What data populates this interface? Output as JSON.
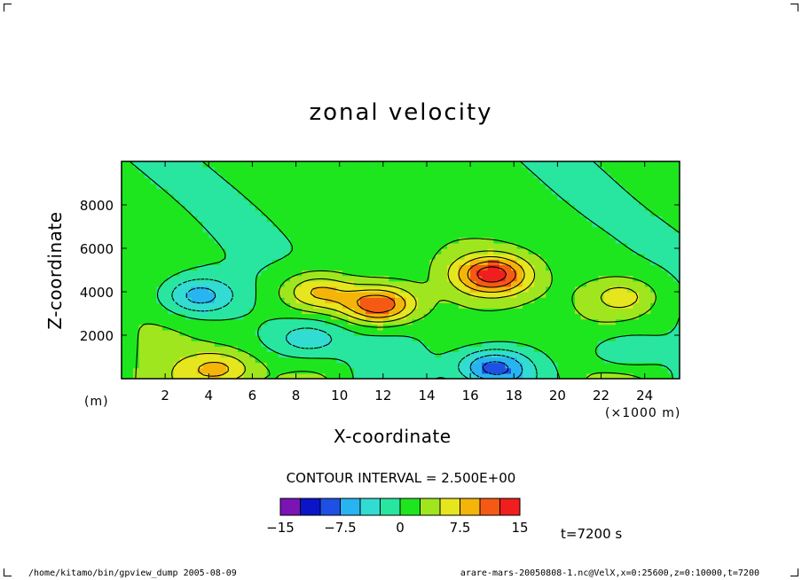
{
  "chart_data": {
    "type": "contour",
    "title": "zonal velocity",
    "xlabel": "X-coordinate",
    "ylabel": "Z-coordinate",
    "x_unit_left": "(m)",
    "x_unit_right": "(×1000 m)",
    "xlim": [
      0,
      25.6
    ],
    "ylim": [
      0,
      10000
    ],
    "x_ticks": [
      2,
      4,
      6,
      8,
      10,
      12,
      14,
      16,
      18,
      20,
      22,
      24
    ],
    "x_tick_labels": [
      "2",
      "4",
      "6",
      "8",
      "10",
      "12",
      "14",
      "16",
      "18",
      "20",
      "22",
      "24"
    ],
    "y_ticks": [
      2000,
      4000,
      6000,
      8000
    ],
    "y_tick_labels": [
      "2000",
      "4000",
      "6000",
      "8000"
    ],
    "contour_interval_text": "CONTOUR INTERVAL = 2.500E+00",
    "colorbar": {
      "levels": [
        -15,
        -12.5,
        -10,
        -7.5,
        -5,
        -2.5,
        0,
        2.5,
        5,
        7.5,
        10,
        12.5,
        15
      ],
      "colors": [
        "#7a14b4",
        "#0a14c8",
        "#1e50e6",
        "#28b4f0",
        "#32dcd2",
        "#28e6a0",
        "#1ee61e",
        "#a0e61e",
        "#e6e61e",
        "#f5b40a",
        "#f55a14",
        "#f01e1e",
        "#f58c8c"
      ],
      "tick_labels": [
        "−15",
        "−7.5",
        "0",
        "7.5",
        "15"
      ]
    },
    "features": [
      {
        "x": 3.5,
        "z": 3800,
        "value": -7.5
      },
      {
        "x": 8.5,
        "z": 1800,
        "value": -5
      },
      {
        "x": 11.8,
        "z": 3400,
        "value": 12
      },
      {
        "x": 9,
        "z": 4000,
        "value": 7.5
      },
      {
        "x": 17,
        "z": 4800,
        "value": 12
      },
      {
        "x": 17,
        "z": 500,
        "value": -10
      },
      {
        "x": 4.5,
        "z": 400,
        "value": 7.5
      },
      {
        "x": 23,
        "z": 1200,
        "value": -5
      },
      {
        "x": 23,
        "z": 3800,
        "value": 5
      }
    ],
    "time_label": "t=7200 s"
  },
  "footer": {
    "left": "/home/kitamo/bin/gpview_dump   2005-08-09",
    "right": "arare-mars-20050808-1.nc@VelX,x=0:25600,z=0:10000,t=7200"
  }
}
